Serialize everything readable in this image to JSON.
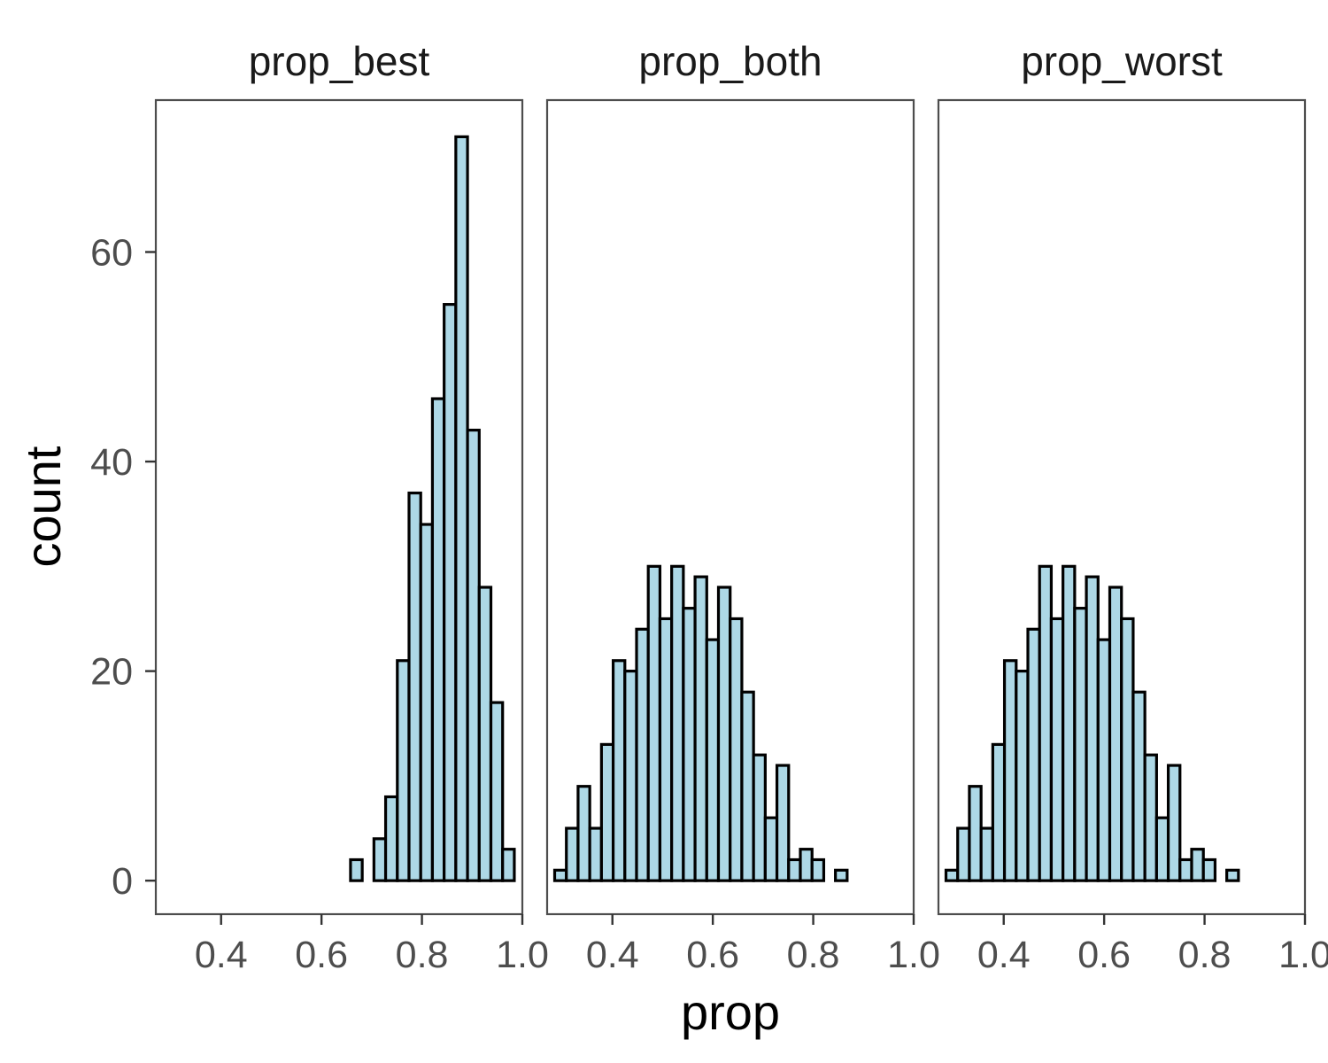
{
  "chart_data": {
    "type": "bar",
    "subtype": "faceted-histogram",
    "xlabel": "prop",
    "ylabel": "count",
    "xlim": [
      0.27,
      1.0
    ],
    "ylim": [
      -3.2,
      74.5
    ],
    "xticks": [
      "0.4",
      "0.6",
      "0.8",
      "1.0"
    ],
    "yticks": [
      "0",
      "20",
      "40",
      "60"
    ],
    "grid": false,
    "bar_fill": "#add8e6",
    "bar_outline": "#000000",
    "bin_start": 0.285,
    "bin_width": 0.0233,
    "panels": [
      {
        "name": "prop_best",
        "counts": [
          0,
          0,
          0,
          0,
          0,
          0,
          0,
          0,
          0,
          0,
          0,
          0,
          0,
          0,
          0,
          0,
          2,
          0,
          4,
          8,
          21,
          37,
          34,
          46,
          55,
          71,
          43,
          28,
          17,
          3
        ]
      },
      {
        "name": "prop_both",
        "counts": [
          1,
          5,
          9,
          5,
          13,
          21,
          20,
          24,
          30,
          25,
          30,
          26,
          29,
          23,
          28,
          25,
          18,
          12,
          6,
          11,
          2,
          3,
          2,
          0,
          1,
          0,
          0,
          0,
          0,
          0
        ]
      },
      {
        "name": "prop_worst",
        "counts": [
          1,
          5,
          9,
          5,
          13,
          21,
          20,
          24,
          30,
          25,
          30,
          26,
          29,
          23,
          28,
          25,
          18,
          12,
          6,
          11,
          2,
          3,
          2,
          0,
          1,
          0,
          0,
          0,
          0,
          0
        ]
      }
    ]
  }
}
